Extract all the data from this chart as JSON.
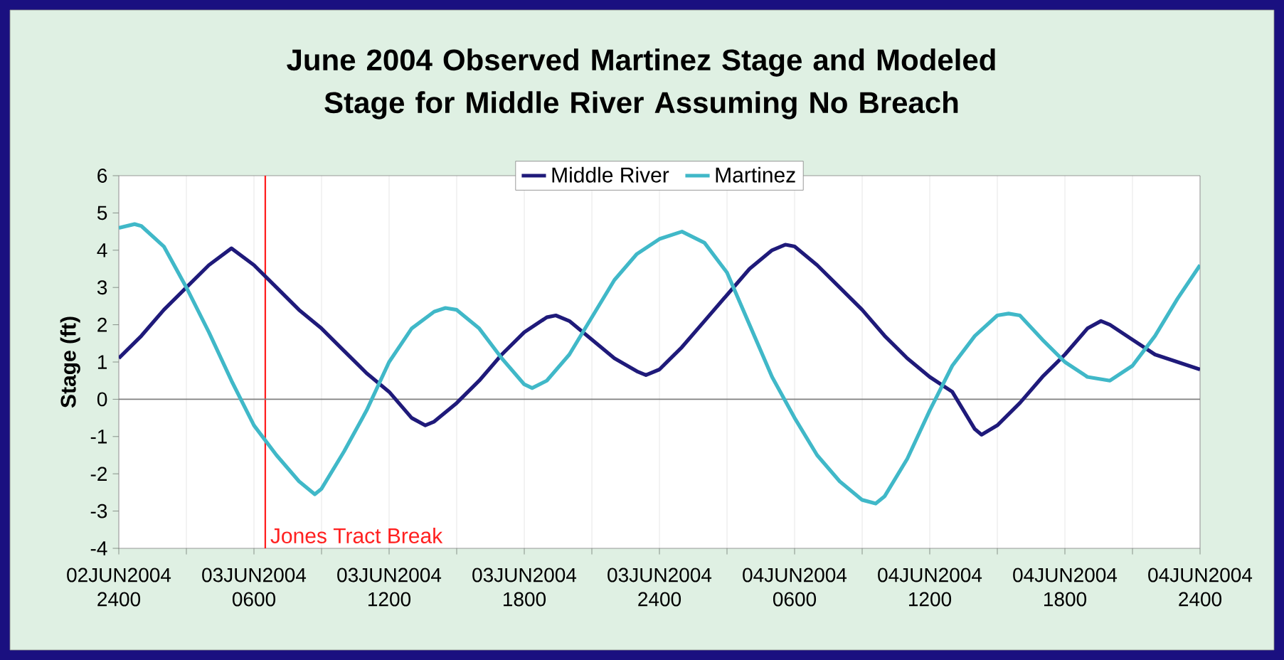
{
  "chart_data": {
    "type": "line",
    "title": "June 2004 Observed Martinez Stage and Modeled Stage for Middle River Assuming No Breach",
    "ylabel": "Stage (ft)",
    "xlim": [
      "2004-06-02T24:00",
      "2004-06-04T24:00"
    ],
    "ylim": [
      -4,
      6
    ],
    "xticks": [
      {
        "value": "2004-06-02T24:00",
        "label": "02JUN2004 2400"
      },
      {
        "value": "2004-06-03T03:00",
        "label": null
      },
      {
        "value": "2004-06-03T06:00",
        "label": "03JUN2004 0600"
      },
      {
        "value": "2004-06-03T09:00",
        "label": null
      },
      {
        "value": "2004-06-03T12:00",
        "label": "03JUN2004 1200"
      },
      {
        "value": "2004-06-03T15:00",
        "label": null
      },
      {
        "value": "2004-06-03T18:00",
        "label": "03JUN2004 1800"
      },
      {
        "value": "2004-06-03T21:00",
        "label": null
      },
      {
        "value": "2004-06-03T24:00",
        "label": "03JUN2004 2400"
      },
      {
        "value": "2004-06-04T03:00",
        "label": null
      },
      {
        "value": "2004-06-04T06:00",
        "label": "04JUN2004 0600"
      },
      {
        "value": "2004-06-04T09:00",
        "label": null
      },
      {
        "value": "2004-06-04T12:00",
        "label": "04JUN2004 1200"
      },
      {
        "value": "2004-06-04T15:00",
        "label": null
      },
      {
        "value": "2004-06-04T18:00",
        "label": "04JUN2004 1800"
      },
      {
        "value": "2004-06-04T21:00",
        "label": null
      },
      {
        "value": "2004-06-04T24:00",
        "label": "04JUN2004 2400"
      }
    ],
    "yticks": [
      -4,
      -3,
      -2,
      -1,
      0,
      1,
      2,
      3,
      4,
      5,
      6
    ],
    "grid": "x",
    "legend": "top",
    "ref_lines": [
      {
        "axis": "x",
        "value": "2004-06-03T06:30",
        "label": "Jones Tract Break",
        "color": "#ff2020"
      },
      {
        "axis": "y",
        "value": 0,
        "label": null,
        "color": "#808080"
      }
    ],
    "series": [
      {
        "name": "Middle River",
        "color": "#1f1a7a",
        "x": [
          "2004-06-03T00:00",
          "2004-06-03T01:00",
          "2004-06-03T02:00",
          "2004-06-03T03:00",
          "2004-06-03T04:00",
          "2004-06-03T05:00",
          "2004-06-03T06:00",
          "2004-06-03T07:00",
          "2004-06-03T08:00",
          "2004-06-03T09:00",
          "2004-06-03T10:00",
          "2004-06-03T11:00",
          "2004-06-03T12:00",
          "2004-06-03T13:00",
          "2004-06-03T13:36",
          "2004-06-03T14:00",
          "2004-06-03T15:00",
          "2004-06-03T16:00",
          "2004-06-03T17:00",
          "2004-06-03T18:00",
          "2004-06-03T19:00",
          "2004-06-03T19:24",
          "2004-06-03T20:00",
          "2004-06-03T21:00",
          "2004-06-03T22:00",
          "2004-06-03T23:00",
          "2004-06-03T23:24",
          "2004-06-04T00:00",
          "2004-06-04T01:00",
          "2004-06-04T02:00",
          "2004-06-04T03:00",
          "2004-06-04T04:00",
          "2004-06-04T05:00",
          "2004-06-04T05:36",
          "2004-06-04T06:00",
          "2004-06-04T07:00",
          "2004-06-04T08:00",
          "2004-06-04T09:00",
          "2004-06-04T10:00",
          "2004-06-04T11:00",
          "2004-06-04T12:00",
          "2004-06-04T13:00",
          "2004-06-04T14:00",
          "2004-06-04T14:18",
          "2004-06-04T15:00",
          "2004-06-04T16:00",
          "2004-06-04T17:00",
          "2004-06-04T18:00",
          "2004-06-04T19:00",
          "2004-06-04T19:36",
          "2004-06-04T20:00",
          "2004-06-04T21:00",
          "2004-06-04T22:00",
          "2004-06-04T23:00",
          "2004-06-05T00:00"
        ],
        "values": [
          1.1,
          1.7,
          2.4,
          3.0,
          3.6,
          4.05,
          3.6,
          3.0,
          2.4,
          1.9,
          1.3,
          0.7,
          0.2,
          -0.5,
          -0.7,
          -0.6,
          -0.1,
          0.5,
          1.2,
          1.8,
          2.2,
          2.25,
          2.1,
          1.6,
          1.1,
          0.75,
          0.65,
          0.8,
          1.4,
          2.1,
          2.8,
          3.5,
          4.0,
          4.15,
          4.1,
          3.6,
          3.0,
          2.4,
          1.7,
          1.1,
          0.6,
          0.2,
          -0.8,
          -0.95,
          -0.7,
          -0.1,
          0.6,
          1.2,
          1.9,
          2.1,
          2.0,
          1.6,
          1.2,
          1.0,
          0.8
        ]
      },
      {
        "name": "Martinez",
        "color": "#40b8c8",
        "x": [
          "2004-06-03T00:00",
          "2004-06-03T00:42",
          "2004-06-03T01:00",
          "2004-06-03T02:00",
          "2004-06-03T03:00",
          "2004-06-03T04:00",
          "2004-06-03T05:00",
          "2004-06-03T06:00",
          "2004-06-03T07:00",
          "2004-06-03T08:00",
          "2004-06-03T08:42",
          "2004-06-03T09:00",
          "2004-06-03T10:00",
          "2004-06-03T11:00",
          "2004-06-03T12:00",
          "2004-06-03T13:00",
          "2004-06-03T14:00",
          "2004-06-03T14:30",
          "2004-06-03T15:00",
          "2004-06-03T16:00",
          "2004-06-03T17:00",
          "2004-06-03T18:00",
          "2004-06-03T18:21",
          "2004-06-03T19:00",
          "2004-06-03T20:00",
          "2004-06-03T21:00",
          "2004-06-03T22:00",
          "2004-06-03T23:00",
          "2004-06-04T00:00",
          "2004-06-04T01:00",
          "2004-06-04T02:00",
          "2004-06-04T03:00",
          "2004-06-04T04:00",
          "2004-06-04T05:00",
          "2004-06-04T06:00",
          "2004-06-04T07:00",
          "2004-06-04T08:00",
          "2004-06-04T09:00",
          "2004-06-04T09:36",
          "2004-06-04T10:00",
          "2004-06-04T11:00",
          "2004-06-04T12:00",
          "2004-06-04T13:00",
          "2004-06-04T14:00",
          "2004-06-04T15:00",
          "2004-06-04T15:30",
          "2004-06-04T16:00",
          "2004-06-04T17:00",
          "2004-06-04T18:00",
          "2004-06-04T19:00",
          "2004-06-04T20:00",
          "2004-06-04T21:00",
          "2004-06-04T22:00",
          "2004-06-04T23:00",
          "2004-06-05T00:00"
        ],
        "values": [
          4.6,
          4.7,
          4.65,
          4.1,
          3.0,
          1.8,
          0.5,
          -0.7,
          -1.5,
          -2.2,
          -2.55,
          -2.4,
          -1.4,
          -0.3,
          1.0,
          1.9,
          2.35,
          2.45,
          2.4,
          1.9,
          1.1,
          0.4,
          0.3,
          0.5,
          1.2,
          2.2,
          3.2,
          3.9,
          4.3,
          4.5,
          4.2,
          3.4,
          2.0,
          0.6,
          -0.5,
          -1.5,
          -2.2,
          -2.7,
          -2.8,
          -2.6,
          -1.6,
          -0.3,
          0.9,
          1.7,
          2.25,
          2.3,
          2.25,
          1.6,
          1.0,
          0.6,
          0.5,
          0.9,
          1.7,
          2.7,
          3.6
        ]
      }
    ]
  }
}
